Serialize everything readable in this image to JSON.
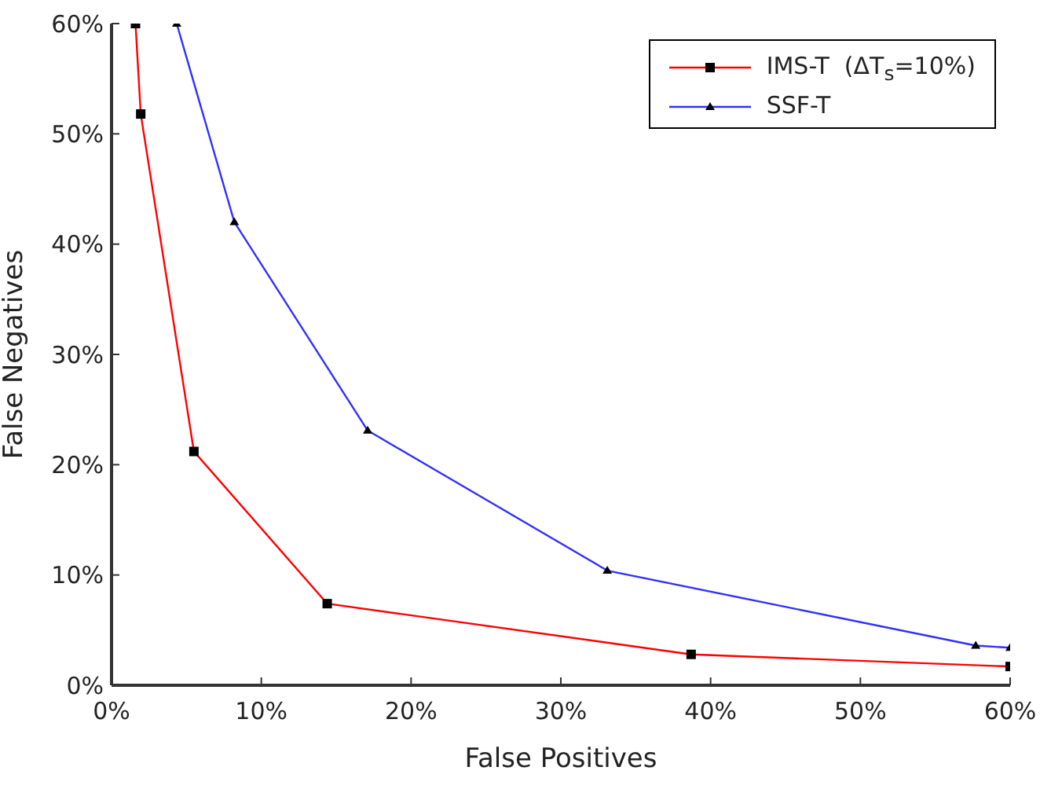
{
  "chart_data": {
    "type": "line",
    "xlabel": "False Positives",
    "ylabel": "False Negatives",
    "xlim": [
      0,
      60
    ],
    "ylim": [
      0,
      60
    ],
    "xticks": [
      {
        "value": 0,
        "label": "0%"
      },
      {
        "value": 10,
        "label": "10%"
      },
      {
        "value": 20,
        "label": "20%"
      },
      {
        "value": 30,
        "label": "30%"
      },
      {
        "value": 40,
        "label": "40%"
      },
      {
        "value": 50,
        "label": "50%"
      },
      {
        "value": 60,
        "label": "60%"
      }
    ],
    "yticks": [
      {
        "value": 0,
        "label": "0%"
      },
      {
        "value": 10,
        "label": "10%"
      },
      {
        "value": 20,
        "label": "20%"
      },
      {
        "value": 30,
        "label": "30%"
      },
      {
        "value": 40,
        "label": "40%"
      },
      {
        "value": 50,
        "label": "50%"
      },
      {
        "value": 60,
        "label": "60%"
      }
    ],
    "grid": false,
    "legend": "top right",
    "series": [
      {
        "name": "IMS-T  (ΔT$_{s}$=10%)",
        "color": "#ff0000",
        "marker": "square",
        "x": [
          1.6,
          1.95,
          5.5,
          14.4,
          38.7,
          60
        ],
        "values": [
          60,
          51.8,
          21.2,
          7.4,
          2.8,
          1.7
        ]
      },
      {
        "name": "SSF-T",
        "color": "#3030ff",
        "marker": "triangle",
        "x": [
          4.35,
          8.2,
          17.1,
          33.1,
          57.7,
          60
        ],
        "values": [
          60,
          42.0,
          23.1,
          10.4,
          3.6,
          3.4
        ]
      }
    ]
  }
}
